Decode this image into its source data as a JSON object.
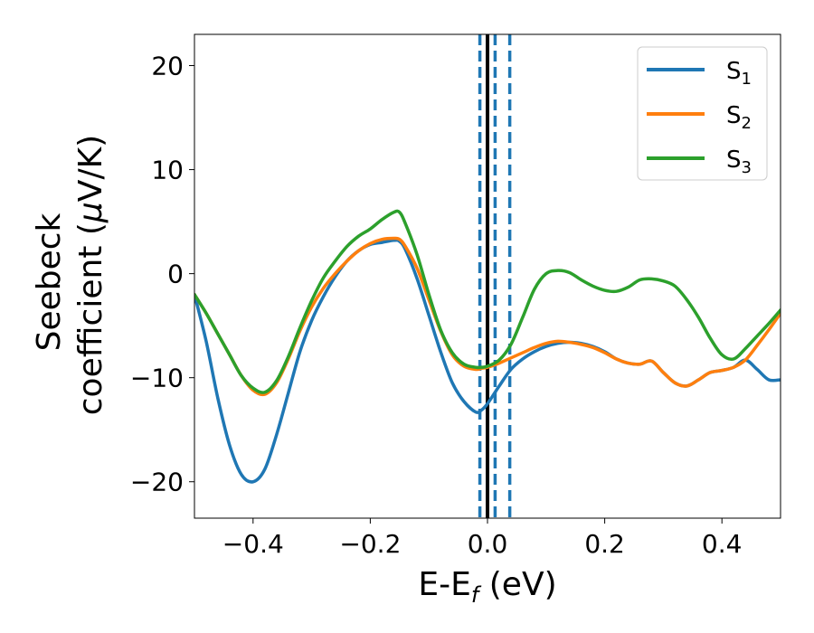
{
  "chart_data": {
    "type": "line",
    "xlabel": {
      "main": "E-E",
      "sub": "f",
      "unit": " (eV)"
    },
    "ylabel": {
      "line1": "Seebeck",
      "line2_pre": "coefficient  (",
      "mu": "μ",
      "line2_post": "V/K)"
    },
    "xlim": [
      -0.5,
      0.5
    ],
    "ylim": [
      -23.5,
      23
    ],
    "xticks": [
      {
        "value": -0.4,
        "label": "−0.4"
      },
      {
        "value": -0.2,
        "label": "−0.2"
      },
      {
        "value": 0.0,
        "label": "0.0"
      },
      {
        "value": 0.2,
        "label": "0.2"
      },
      {
        "value": 0.4,
        "label": "0.4"
      }
    ],
    "yticks": [
      {
        "value": -20,
        "label": "−20"
      },
      {
        "value": -10,
        "label": "−10"
      },
      {
        "value": 0,
        "label": "0"
      },
      {
        "value": 10,
        "label": "10"
      },
      {
        "value": 20,
        "label": "20"
      }
    ],
    "grid": false,
    "legend_position": "top-right",
    "vertical_lines": [
      {
        "x": 0.0,
        "style": "solid",
        "color": "#000000"
      },
      {
        "x": -0.013,
        "style": "dashed",
        "color": "#1f77b4"
      },
      {
        "x": 0.013,
        "style": "dashed",
        "color": "#1f77b4"
      },
      {
        "x": 0.038,
        "style": "dashed",
        "color": "#1f77b4"
      }
    ],
    "series": [
      {
        "name": "S",
        "sub": "1",
        "color": "#1f77b4",
        "x": [
          -0.5,
          -0.48,
          -0.46,
          -0.44,
          -0.42,
          -0.4,
          -0.38,
          -0.36,
          -0.34,
          -0.32,
          -0.3,
          -0.28,
          -0.26,
          -0.24,
          -0.22,
          -0.2,
          -0.18,
          -0.16,
          -0.15,
          -0.14,
          -0.12,
          -0.1,
          -0.08,
          -0.06,
          -0.04,
          -0.02,
          -0.01,
          0.0,
          0.02,
          0.04,
          0.06,
          0.08,
          0.1,
          0.12,
          0.14,
          0.16,
          0.18,
          0.2,
          0.22,
          0.24,
          0.26,
          0.28,
          0.3,
          0.32,
          0.34,
          0.36,
          0.38,
          0.4,
          0.42,
          0.44,
          0.46,
          0.48,
          0.5
        ],
        "y": [
          -2,
          -6.5,
          -12,
          -16.5,
          -19.3,
          -20,
          -18.8,
          -15.5,
          -11.5,
          -7.5,
          -4.5,
          -2.2,
          -0.3,
          1.2,
          2.2,
          2.8,
          3.0,
          3.2,
          3.1,
          2.3,
          -0.5,
          -4,
          -7.5,
          -10.5,
          -12.3,
          -13.3,
          -13.1,
          -12.5,
          -10.8,
          -9.2,
          -8.2,
          -7.5,
          -7.0,
          -6.7,
          -6.6,
          -6.7,
          -7.0,
          -7.5,
          -8.2,
          -8.6,
          -8.7,
          -8.4,
          -9.5,
          -10.5,
          -10.8,
          -10.2,
          -9.5,
          -9.3,
          -9.0,
          -8.3,
          -9.2,
          -10.2,
          -10.2
        ]
      },
      {
        "name": "S",
        "sub": "2",
        "color": "#ff7f0e",
        "x": [
          -0.5,
          -0.48,
          -0.46,
          -0.44,
          -0.42,
          -0.4,
          -0.38,
          -0.36,
          -0.34,
          -0.32,
          -0.3,
          -0.28,
          -0.26,
          -0.24,
          -0.22,
          -0.2,
          -0.18,
          -0.16,
          -0.15,
          -0.14,
          -0.12,
          -0.1,
          -0.08,
          -0.06,
          -0.04,
          -0.02,
          -0.01,
          0.0,
          0.02,
          0.04,
          0.06,
          0.08,
          0.1,
          0.12,
          0.14,
          0.16,
          0.18,
          0.2,
          0.22,
          0.24,
          0.26,
          0.28,
          0.3,
          0.32,
          0.34,
          0.36,
          0.38,
          0.4,
          0.42,
          0.44,
          0.46,
          0.48,
          0.5
        ],
        "y": [
          -2,
          -3.8,
          -5.8,
          -7.8,
          -9.8,
          -11.2,
          -11.6,
          -10.5,
          -8.2,
          -5.5,
          -3.2,
          -1.4,
          0.0,
          1.2,
          2.2,
          2.9,
          3.3,
          3.4,
          3.3,
          2.6,
          0.5,
          -2.5,
          -5.5,
          -7.8,
          -8.9,
          -9.2,
          -9.1,
          -9.0,
          -8.6,
          -8.1,
          -7.6,
          -7.1,
          -6.7,
          -6.5,
          -6.6,
          -6.8,
          -7.1,
          -7.6,
          -8.2,
          -8.6,
          -8.7,
          -8.4,
          -9.5,
          -10.5,
          -10.8,
          -10.2,
          -9.5,
          -9.3,
          -9.0,
          -8.3,
          -6.9,
          -5.4,
          -3.8
        ]
      },
      {
        "name": "S",
        "sub": "3",
        "color": "#2ca02c",
        "x": [
          -0.5,
          -0.48,
          -0.46,
          -0.44,
          -0.42,
          -0.4,
          -0.38,
          -0.36,
          -0.34,
          -0.32,
          -0.3,
          -0.28,
          -0.26,
          -0.24,
          -0.22,
          -0.2,
          -0.18,
          -0.16,
          -0.15,
          -0.14,
          -0.12,
          -0.1,
          -0.08,
          -0.06,
          -0.04,
          -0.02,
          -0.01,
          0.0,
          0.02,
          0.04,
          0.06,
          0.08,
          0.1,
          0.12,
          0.14,
          0.16,
          0.18,
          0.2,
          0.22,
          0.24,
          0.26,
          0.28,
          0.3,
          0.32,
          0.34,
          0.36,
          0.38,
          0.4,
          0.42,
          0.44,
          0.46,
          0.48,
          0.5
        ],
        "y": [
          -2,
          -3.8,
          -5.8,
          -7.8,
          -9.8,
          -11.0,
          -11.4,
          -10.3,
          -8.0,
          -5.2,
          -2.6,
          -0.4,
          1.2,
          2.6,
          3.6,
          4.3,
          5.2,
          5.9,
          5.9,
          4.8,
          1.8,
          -2.0,
          -5.4,
          -7.6,
          -8.7,
          -9.0,
          -9.0,
          -8.9,
          -8.3,
          -6.8,
          -4.2,
          -1.5,
          0.0,
          0.3,
          0.1,
          -0.6,
          -1.2,
          -1.6,
          -1.7,
          -1.3,
          -0.6,
          -0.5,
          -0.7,
          -1.2,
          -2.5,
          -4.2,
          -6.2,
          -7.8,
          -8.2,
          -7.2,
          -6.0,
          -4.8,
          -3.5
        ]
      }
    ]
  }
}
